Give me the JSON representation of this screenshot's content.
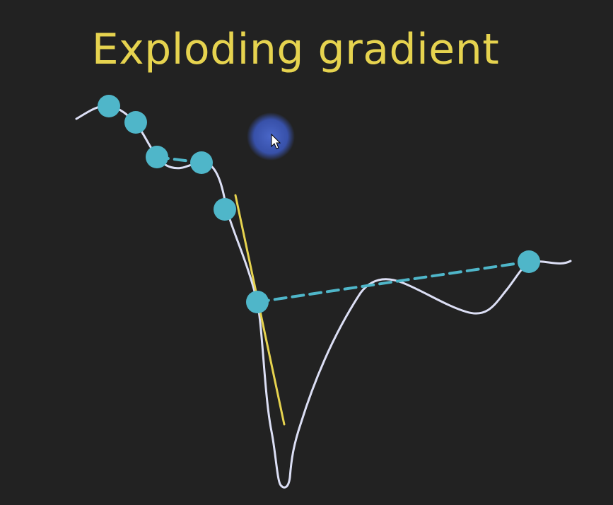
{
  "title": "Exploding gradient",
  "colors": {
    "background": "#222222",
    "title": "#e6d34f",
    "curve": "#dcdff5",
    "points": "#4fb6c9",
    "tangent": "#e6d34f",
    "step_line": "#4fb6c9",
    "cursor_highlight": "#3a56b8"
  },
  "icons": {
    "cursor": "mouse-pointer-icon"
  }
}
